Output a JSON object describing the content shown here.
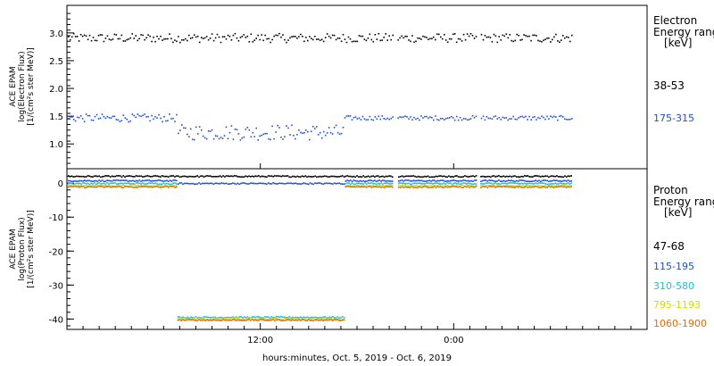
{
  "chart_data": {
    "type": "scatter",
    "xlabel": "hours:minutes, Oct.  5, 2019 - Oct.  6, 2019",
    "x_ticks": [
      {
        "hour": 12,
        "label": "12:00"
      },
      {
        "hour": 24,
        "label": "0:00"
      }
    ],
    "x_range_hours": [
      0,
      36
    ],
    "data_gaps_hours": [
      [
        20.2,
        20.5
      ],
      [
        25.4,
        25.6
      ]
    ],
    "panels": [
      {
        "id": "electron",
        "ylabel_lines": [
          "ACE EPAM",
          "log(Electron Flux)",
          "[1/(cm²s ster MeV)]"
        ],
        "ylim": [
          0.65,
          3.4
        ],
        "yticks": [
          {
            "value": 1.0,
            "label": "1.0"
          },
          {
            "value": 1.5,
            "label": "1.5"
          },
          {
            "value": 2.0,
            "label": "2.0"
          },
          {
            "value": 2.5,
            "label": "2.5"
          },
          {
            "value": 3.0,
            "label": "3.0"
          }
        ],
        "legend_title_lines": [
          "Electron",
          "Energy ranges"
        ],
        "legend_unit": "[keV]",
        "series": [
          {
            "name": "38-53",
            "color": "#000000",
            "x_start": 0,
            "x_end": 31.3,
            "segments": [
              {
                "from": 0,
                "to": 31.3,
                "level": 2.92,
                "spread": 0.08
              }
            ]
          },
          {
            "name": "175-315",
            "color": "#1f4fd6",
            "x_start": 0,
            "x_end": 31.3,
            "segments": [
              {
                "from": 0,
                "to": 6.8,
                "level": 1.48,
                "spread": 0.07
              },
              {
                "from": 6.8,
                "to": 17.2,
                "level": 1.22,
                "spread": 0.14
              },
              {
                "from": 17.2,
                "to": 31.3,
                "level": 1.48,
                "spread": 0.04
              }
            ]
          }
        ]
      },
      {
        "id": "proton",
        "ylabel_lines": [
          "ACE EPAM",
          "log(Proton Flux)",
          "[1/(cm²s ster MeV)]"
        ],
        "ylim": [
          -42,
          3.2
        ],
        "yticks": [
          {
            "value": 0,
            "label": "0"
          },
          {
            "value": -10,
            "label": "-10"
          },
          {
            "value": -20,
            "label": "-20"
          },
          {
            "value": -30,
            "label": "-30"
          },
          {
            "value": -40,
            "label": "-40"
          }
        ],
        "legend_title_lines": [
          "Proton",
          "Energy ranges"
        ],
        "legend_unit": "[keV]",
        "fill_window": {
          "from": 6.8,
          "to": 17.2
        },
        "series": [
          {
            "name": "47-68",
            "color": "#000000",
            "normal": 2.2,
            "fill": 2.2
          },
          {
            "name": "115-195",
            "color": "#1f4fd6",
            "normal": 0.9,
            "fill": 0.1
          },
          {
            "name": "310-580",
            "color": "#19c3d4",
            "normal": 0.1,
            "fill": -39.3
          },
          {
            "name": "795-1193",
            "color": "#cfe000",
            "normal": -0.5,
            "fill": -39.8
          },
          {
            "name": "1060-1900",
            "color": "#e06a10",
            "normal": -0.9,
            "fill": -40.1
          }
        ]
      }
    ]
  }
}
